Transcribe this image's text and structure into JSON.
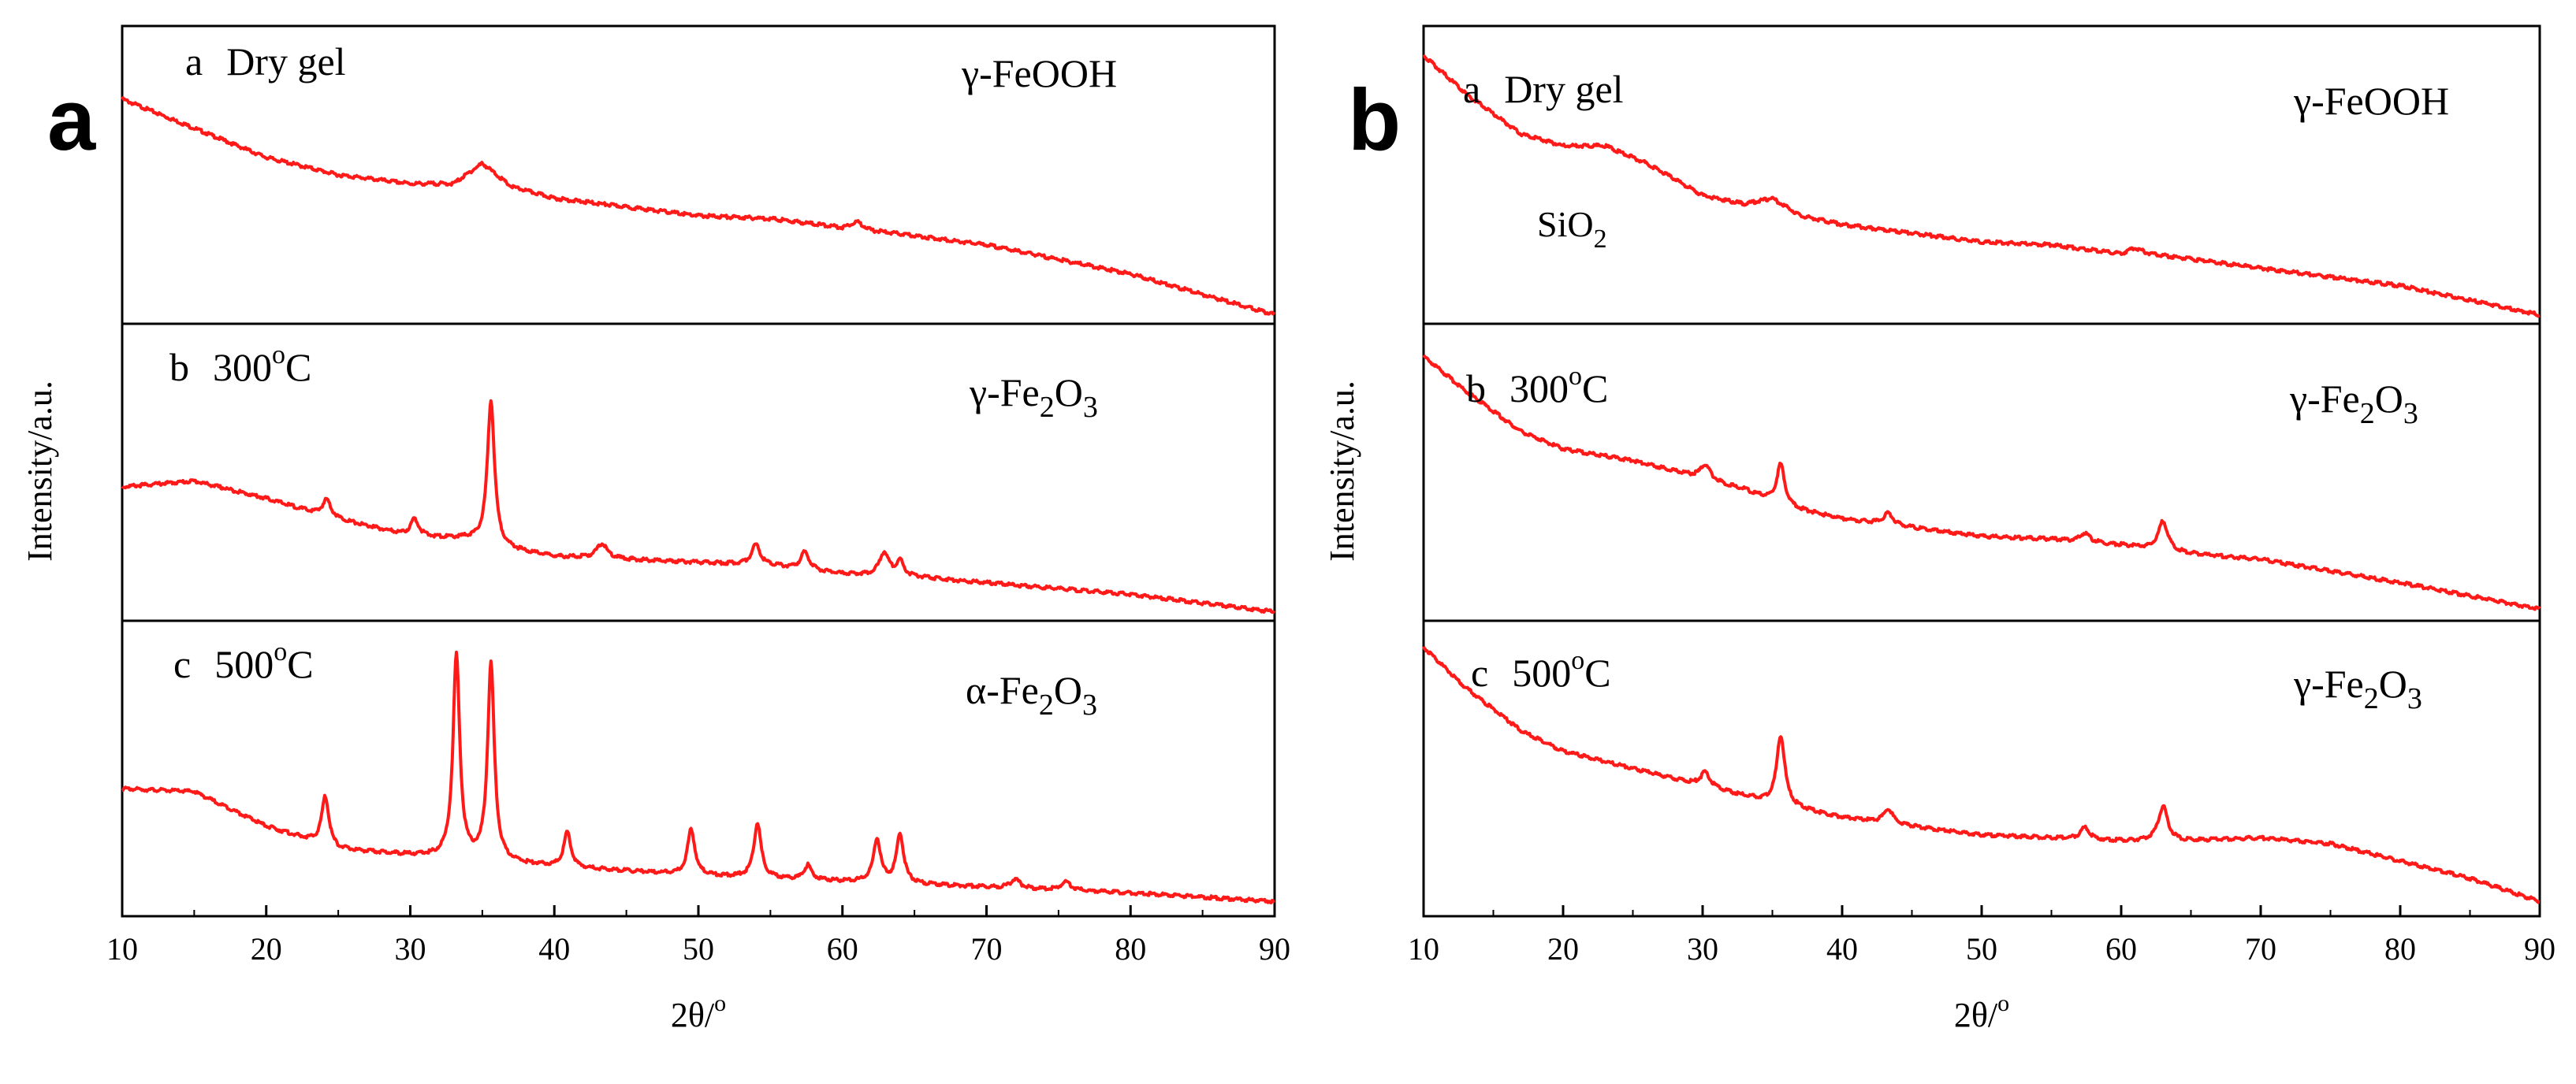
{
  "colors": {
    "trace": "#ff1a1a",
    "axis": "#000000",
    "background": "#ffffff"
  },
  "chart_data": [
    {
      "type": "line",
      "panel_letter": "a",
      "xlabel": "2θ/",
      "xlabel_sup": "o",
      "ylabel": "Intensity/a.u.",
      "xlim": [
        10,
        90
      ],
      "x_ticks": [
        "10",
        "20",
        "30",
        "40",
        "50",
        "60",
        "70",
        "80",
        "90"
      ],
      "y_ticks": false,
      "grid": false,
      "stacked": true,
      "series": [
        {
          "letter": "a",
          "label_main": "Dry gel",
          "label_sup": "",
          "phase": {
            "pre": "γ-FeOOH",
            "sub1": "",
            "mid": "",
            "sub2": ""
          },
          "relative_intensity": [
            [
              10,
              0.76
            ],
            [
              15,
              0.66
            ],
            [
              20,
              0.56
            ],
            [
              25,
              0.5
            ],
            [
              30,
              0.47
            ],
            [
              33,
              0.47
            ],
            [
              35,
              0.54
            ],
            [
              37,
              0.46
            ],
            [
              40,
              0.42
            ],
            [
              45,
              0.39
            ],
            [
              50,
              0.36
            ],
            [
              55,
              0.35
            ],
            [
              60,
              0.32
            ],
            [
              61,
              0.34
            ],
            [
              62,
              0.31
            ],
            [
              70,
              0.26
            ],
            [
              80,
              0.16
            ],
            [
              90,
              0.02
            ]
          ],
          "peaks": []
        },
        {
          "letter": "b",
          "label_main": "300",
          "label_sup": "o",
          "label_after": "C",
          "phase": {
            "pre": "γ-Fe",
            "sub1": "2",
            "mid": "O",
            "sub2": "3"
          },
          "relative_intensity": [
            [
              10,
              0.45
            ],
            [
              15,
              0.47
            ],
            [
              20,
              0.41
            ],
            [
              24,
              0.35
            ],
            [
              30,
              0.28
            ],
            [
              34,
              0.27
            ],
            [
              36,
              0.24
            ],
            [
              40,
              0.21
            ],
            [
              45,
              0.2
            ],
            [
              50,
              0.19
            ],
            [
              55,
              0.18
            ],
            [
              60,
              0.15
            ],
            [
              65,
              0.14
            ],
            [
              70,
              0.12
            ],
            [
              80,
              0.08
            ],
            [
              90,
              0.02
            ]
          ],
          "peaks": [
            [
              24.2,
              0.06,
              0.35
            ],
            [
              30.3,
              0.06,
              0.35
            ],
            [
              35.6,
              0.5,
              0.3
            ],
            [
              43.3,
              0.05,
              0.45
            ],
            [
              54.0,
              0.07,
              0.35
            ],
            [
              57.4,
              0.06,
              0.35
            ],
            [
              62.9,
              0.08,
              0.4
            ],
            [
              64.0,
              0.05,
              0.3
            ]
          ]
        },
        {
          "letter": "c",
          "label_main": "500",
          "label_sup": "o",
          "label_after": "C",
          "phase": {
            "pre": "α-Fe",
            "sub1": "2",
            "mid": "O",
            "sub2": "3"
          },
          "relative_intensity": [
            [
              10,
              0.43
            ],
            [
              15,
              0.42
            ],
            [
              20,
              0.3
            ],
            [
              25,
              0.22
            ],
            [
              30,
              0.2
            ],
            [
              40,
              0.16
            ],
            [
              50,
              0.13
            ],
            [
              60,
              0.11
            ],
            [
              70,
              0.09
            ],
            [
              80,
              0.07
            ],
            [
              90,
              0.04
            ]
          ],
          "peaks": [
            [
              24.1,
              0.17,
              0.3
            ],
            [
              33.2,
              0.7,
              0.28
            ],
            [
              35.6,
              0.68,
              0.28
            ],
            [
              40.9,
              0.12,
              0.3
            ],
            [
              49.5,
              0.16,
              0.3
            ],
            [
              54.1,
              0.19,
              0.3
            ],
            [
              57.6,
              0.05,
              0.3
            ],
            [
              62.4,
              0.15,
              0.3
            ],
            [
              64.0,
              0.17,
              0.3
            ],
            [
              72.0,
              0.03,
              0.4
            ],
            [
              75.5,
              0.03,
              0.4
            ]
          ]
        }
      ]
    },
    {
      "type": "line",
      "panel_letter": "b",
      "xlabel": "2θ/",
      "xlabel_sup": "o",
      "ylabel": "Intensity/a.u.",
      "xlim": [
        10,
        90
      ],
      "x_ticks": [
        "10",
        "20",
        "30",
        "40",
        "50",
        "60",
        "70",
        "80",
        "90"
      ],
      "y_ticks": false,
      "grid": false,
      "stacked": true,
      "annotation": {
        "main": "SiO",
        "sub": "2"
      },
      "series": [
        {
          "letter": "a",
          "label_main": "Dry gel",
          "label_sup": "",
          "phase": {
            "pre": "γ-FeOOH",
            "sub1": "",
            "mid": "",
            "sub2": ""
          },
          "relative_intensity": [
            [
              10,
              0.91
            ],
            [
              13,
              0.78
            ],
            [
              17,
              0.64
            ],
            [
              20,
              0.6
            ],
            [
              23,
              0.6
            ],
            [
              26,
              0.54
            ],
            [
              30,
              0.43
            ],
            [
              33,
              0.4
            ],
            [
              35,
              0.42
            ],
            [
              37,
              0.36
            ],
            [
              40,
              0.33
            ],
            [
              45,
              0.3
            ],
            [
              50,
              0.27
            ],
            [
              55,
              0.26
            ],
            [
              60,
              0.23
            ],
            [
              61,
              0.25
            ],
            [
              62,
              0.23
            ],
            [
              70,
              0.18
            ],
            [
              80,
              0.12
            ],
            [
              90,
              0.02
            ]
          ],
          "peaks": []
        },
        {
          "letter": "b",
          "label_main": "300",
          "label_sup": "o",
          "label_after": "C",
          "phase": {
            "pre": "γ-Fe",
            "sub1": "2",
            "mid": "O",
            "sub2": "3"
          },
          "relative_intensity": [
            [
              10,
              0.9
            ],
            [
              13,
              0.78
            ],
            [
              17,
              0.64
            ],
            [
              20,
              0.58
            ],
            [
              25,
              0.54
            ],
            [
              30,
              0.48
            ],
            [
              33,
              0.44
            ],
            [
              36,
              0.38
            ],
            [
              40,
              0.34
            ],
            [
              45,
              0.31
            ],
            [
              50,
              0.28
            ],
            [
              55,
              0.27
            ],
            [
              60,
              0.25
            ],
            [
              65,
              0.22
            ],
            [
              70,
              0.2
            ],
            [
              80,
              0.12
            ],
            [
              90,
              0.03
            ]
          ],
          "peaks": [
            [
              30.2,
              0.05,
              0.4
            ],
            [
              35.6,
              0.14,
              0.35
            ],
            [
              43.3,
              0.04,
              0.4
            ],
            [
              57.4,
              0.03,
              0.4
            ],
            [
              63.0,
              0.1,
              0.4
            ]
          ]
        },
        {
          "letter": "c",
          "label_main": "500",
          "label_sup": "o",
          "label_after": "C",
          "phase": {
            "pre": "γ-Fe",
            "sub1": "2",
            "mid": "O",
            "sub2": "3"
          },
          "relative_intensity": [
            [
              10,
              0.92
            ],
            [
              13,
              0.78
            ],
            [
              17,
              0.63
            ],
            [
              20,
              0.56
            ],
            [
              25,
              0.5
            ],
            [
              30,
              0.44
            ],
            [
              35,
              0.38
            ],
            [
              40,
              0.33
            ],
            [
              45,
              0.3
            ],
            [
              50,
              0.27
            ],
            [
              55,
              0.26
            ],
            [
              60,
              0.25
            ],
            [
              65,
              0.25
            ],
            [
              70,
              0.26
            ],
            [
              75,
              0.24
            ],
            [
              80,
              0.18
            ],
            [
              85,
              0.12
            ],
            [
              90,
              0.04
            ]
          ],
          "peaks": [
            [
              30.2,
              0.05,
              0.4
            ],
            [
              35.6,
              0.24,
              0.35
            ],
            [
              43.3,
              0.05,
              0.4
            ],
            [
              57.4,
              0.04,
              0.4
            ],
            [
              63.0,
              0.12,
              0.4
            ]
          ]
        }
      ]
    }
  ]
}
